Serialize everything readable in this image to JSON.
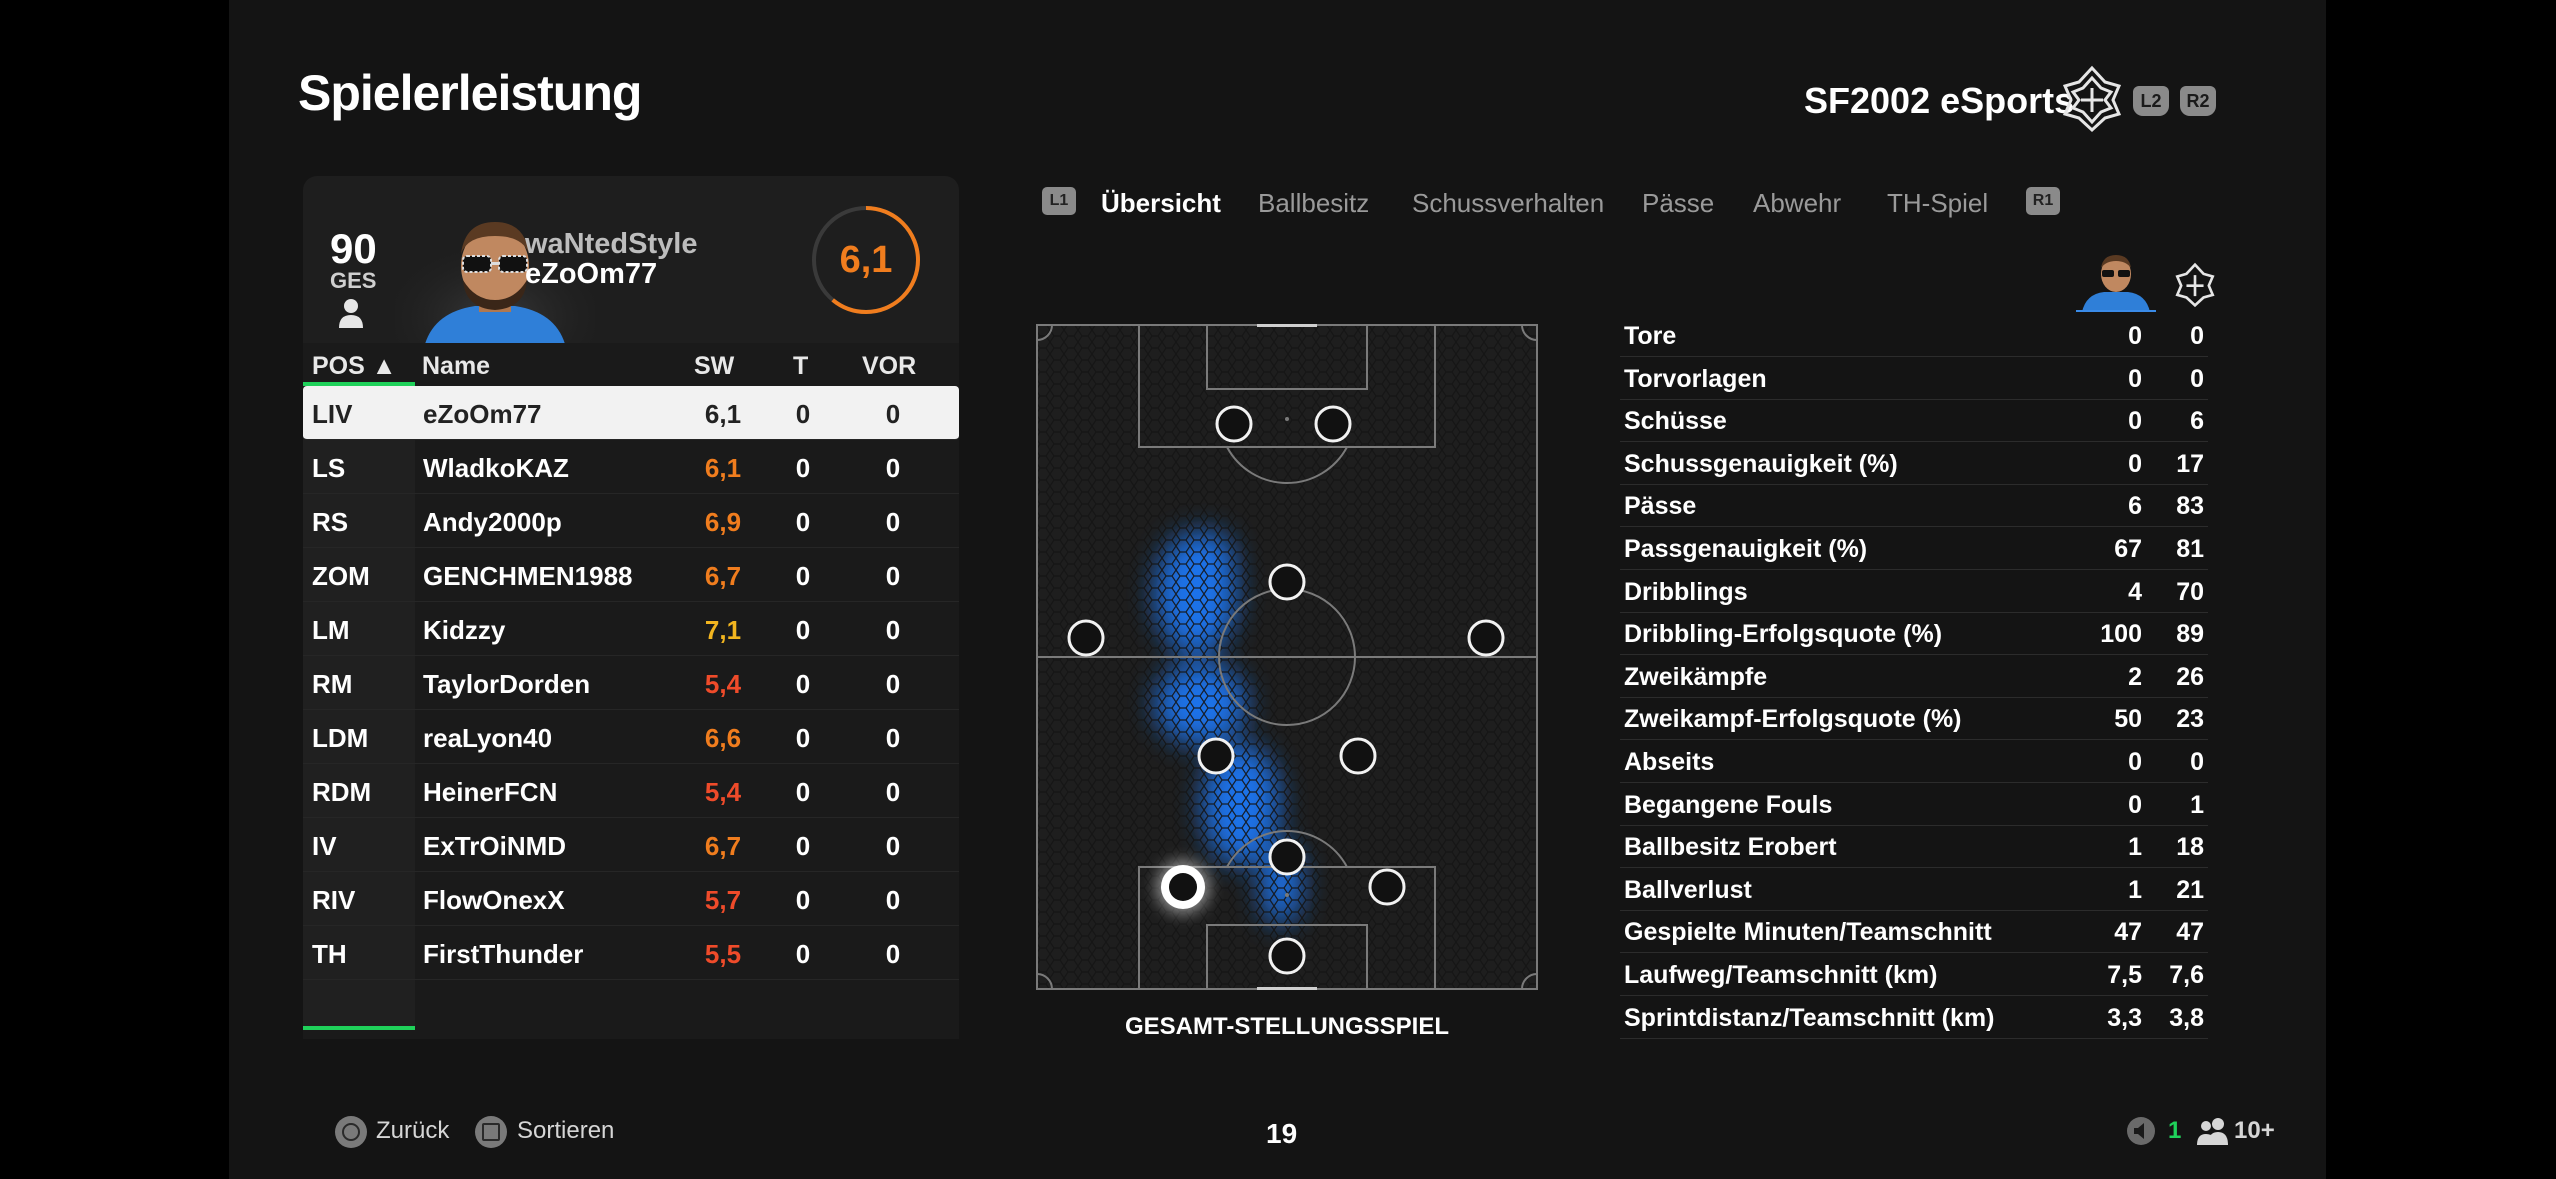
{
  "page_title": "Spielerleistung",
  "team_name": "SF2002 eSports",
  "shoulder_buttons": {
    "l2": "L2",
    "r2": "R2",
    "l1": "L1",
    "r1": "R1"
  },
  "player": {
    "overall": "90",
    "overall_label": "GES",
    "gamertag": "waNtedStyle",
    "psn_name": "eZoOm77",
    "rating": "6,1",
    "rating_value": 6.1
  },
  "table": {
    "headers": {
      "pos": "POS ▲",
      "name": "Name",
      "sw": "SW",
      "t": "T",
      "vor": "VOR"
    },
    "rows": [
      {
        "pos": "LIV",
        "name": "eZoOm77",
        "sw": "6,1",
        "t": "0",
        "vor": "0",
        "color": "#222222"
      },
      {
        "pos": "LS",
        "name": "WladkoKAZ",
        "sw": "6,1",
        "t": "0",
        "vor": "0",
        "color": "#f07d1e"
      },
      {
        "pos": "RS",
        "name": "Andy2000p",
        "sw": "6,9",
        "t": "0",
        "vor": "0",
        "color": "#f07d1e"
      },
      {
        "pos": "ZOM",
        "name": "GENCHMEN1988",
        "sw": "6,7",
        "t": "0",
        "vor": "0",
        "color": "#f07d1e"
      },
      {
        "pos": "LM",
        "name": "Kidzzy",
        "sw": "7,1",
        "t": "0",
        "vor": "0",
        "color": "#f2b51f"
      },
      {
        "pos": "RM",
        "name": "TaylorDorden",
        "sw": "5,4",
        "t": "0",
        "vor": "0",
        "color": "#ef4b2a"
      },
      {
        "pos": "LDM",
        "name": "reaLyon40",
        "sw": "6,6",
        "t": "0",
        "vor": "0",
        "color": "#f07d1e"
      },
      {
        "pos": "RDM",
        "name": "HeinerFCN",
        "sw": "5,4",
        "t": "0",
        "vor": "0",
        "color": "#ef4b2a"
      },
      {
        "pos": "IV",
        "name": "ExTrOiNMD",
        "sw": "6,7",
        "t": "0",
        "vor": "0",
        "color": "#f07d1e"
      },
      {
        "pos": "RIV",
        "name": "FlowOnexX",
        "sw": "5,7",
        "t": "0",
        "vor": "0",
        "color": "#ef4b2a"
      },
      {
        "pos": "TH",
        "name": "FirstThunder",
        "sw": "5,5",
        "t": "0",
        "vor": "0",
        "color": "#ef4b2a"
      }
    ]
  },
  "tabs": [
    "Übersicht",
    "Ballbesitz",
    "Schussverhalten",
    "Pässe",
    "Abwehr",
    "TH-Spiel"
  ],
  "active_tab": 0,
  "pitch_caption": "GESAMT-STELLUNGSSPIEL",
  "stats": [
    {
      "label": "Tore",
      "player": "0",
      "team": "0"
    },
    {
      "label": "Torvorlagen",
      "player": "0",
      "team": "0"
    },
    {
      "label": "Schüsse",
      "player": "0",
      "team": "6"
    },
    {
      "label": "Schussgenauigkeit (%)",
      "player": "0",
      "team": "17"
    },
    {
      "label": "Pässe",
      "player": "6",
      "team": "83"
    },
    {
      "label": "Passgenauigkeit (%)",
      "player": "67",
      "team": "81"
    },
    {
      "label": "Dribblings",
      "player": "4",
      "team": "70"
    },
    {
      "label": "Dribbling-Erfolgsquote (%)",
      "player": "100",
      "team": "89"
    },
    {
      "label": "Zweikämpfe",
      "player": "2",
      "team": "26"
    },
    {
      "label": "Zweikampf-Erfolgsquote (%)",
      "player": "50",
      "team": "23"
    },
    {
      "label": "Abseits",
      "player": "0",
      "team": "0"
    },
    {
      "label": "Begangene Fouls",
      "player": "0",
      "team": "1"
    },
    {
      "label": "Ballbesitz Erobert",
      "player": "1",
      "team": "18"
    },
    {
      "label": "Ballverlust",
      "player": "1",
      "team": "21"
    },
    {
      "label": "Gespielte Minuten/Teamschnitt",
      "player": "47",
      "team": "47"
    },
    {
      "label": "Laufweg/Teamschnitt (km)",
      "player": "7,5",
      "team": "7,6"
    },
    {
      "label": "Sprintdistanz/Teamschnitt (km)",
      "player": "3,3",
      "team": "3,8"
    }
  ],
  "footer": {
    "back": "Zurück",
    "sort": "Sortieren",
    "page": "19",
    "voice_count": "1",
    "players_count": "10+"
  },
  "colors": {
    "accent": "#f07d1e",
    "green": "#1fd15a",
    "heat": "#1e7bff"
  }
}
